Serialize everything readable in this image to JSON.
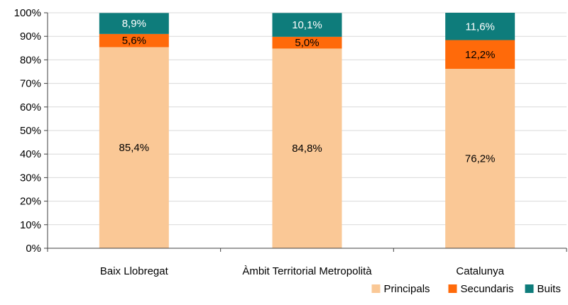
{
  "chart_data": {
    "type": "bar",
    "stacked": true,
    "categories": [
      "Baix Llobregat",
      "Àmbit Territorial Metropolità",
      "Catalunya"
    ],
    "series": [
      {
        "name": "Principals",
        "values": [
          85.4,
          84.8,
          76.2
        ],
        "labels": [
          "85,4%",
          "84,8%",
          "76,2%"
        ],
        "color": "#FAC896",
        "label_color": "#000000"
      },
      {
        "name": "Secundaris",
        "values": [
          5.6,
          5.0,
          12.2
        ],
        "labels": [
          "5,6%",
          "5,0%",
          "12,2%"
        ],
        "color": "#FF6A0A",
        "label_color": "#000000"
      },
      {
        "name": "Buits",
        "values": [
          8.9,
          10.1,
          11.6
        ],
        "labels": [
          "8,9%",
          "10,1%",
          "11,6%"
        ],
        "color": "#0E7C7B",
        "label_color": "#ffffff"
      }
    ],
    "ylim": [
      0,
      100
    ],
    "yticks": [
      0,
      10,
      20,
      30,
      40,
      50,
      60,
      70,
      80,
      90,
      100
    ],
    "ytick_labels": [
      "0%",
      "10%",
      "20%",
      "30%",
      "40%",
      "50%",
      "60%",
      "70%",
      "80%",
      "90%",
      "100%"
    ],
    "grid": true,
    "legend_position": "bottom-right",
    "title": "",
    "xlabel": "",
    "ylabel": ""
  }
}
